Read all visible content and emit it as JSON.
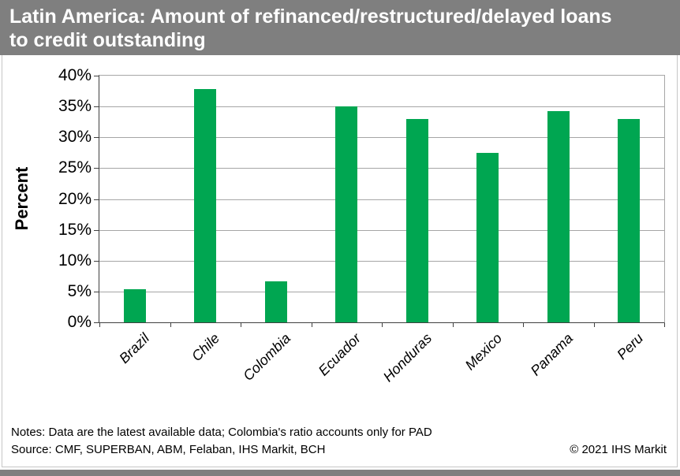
{
  "header": {
    "lines": [
      "Latin America: Amount of refinanced/restructured/delayed loans",
      "to credit outstanding"
    ],
    "bg_color": "#7F7F7F",
    "text_color": "#FFFFFF"
  },
  "chart_data": {
    "type": "bar",
    "title": "Latin America: Amount of refinanced/restructured/delayed loans to credit outstanding",
    "categories": [
      "Brazil",
      "Chile",
      "Colombia",
      "Ecuador",
      "Honduras",
      "Mexico",
      "Panama",
      "Peru"
    ],
    "values": [
      5.4,
      37.8,
      6.7,
      35.0,
      33.0,
      27.5,
      34.2,
      33.0
    ],
    "xlabel": "",
    "ylabel": "Percent",
    "ylim": [
      0,
      40
    ],
    "ytick_step": 5,
    "ytick_labels": [
      "0%",
      "5%",
      "10%",
      "15%",
      "20%",
      "25%",
      "30%",
      "35%",
      "40%"
    ],
    "grid": true,
    "legend": false,
    "bar_color": "#00A651",
    "gridline_color": "#A6A6A6",
    "axis_color": "#404040"
  },
  "footer": {
    "notes": "Notes: Data are the latest available data; Colombia's ratio accounts only for PAD",
    "source": "Source: CMF, SUPERBAN, ABM, Felaban, IHS Markit, BCH",
    "copyright": "© 2021 IHS Markit"
  }
}
